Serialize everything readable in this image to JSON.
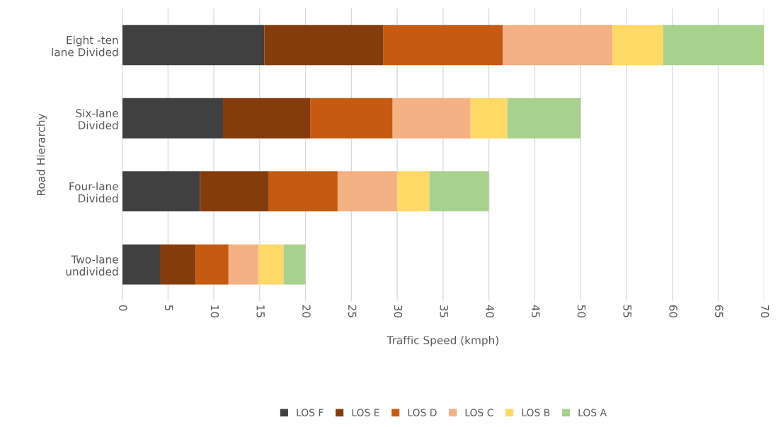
{
  "chart_data": {
    "type": "bar",
    "orientation": "horizontal",
    "stacked": true,
    "xlabel": "Traffic Speed (kmph)",
    "ylabel": "Road Hierarchy",
    "categories": [
      "Eight -ten\nlane Divided",
      "Six-lane\nDivided",
      "Four-lane\nDivided",
      "Two-lane\nundivided"
    ],
    "series": [
      {
        "name": "LOS F",
        "color": "#404040",
        "values": [
          15.5,
          11,
          8.5,
          4.2
        ]
      },
      {
        "name": "LOS E",
        "color": "#843c0c",
        "values": [
          13,
          9.5,
          7.5,
          3.8
        ]
      },
      {
        "name": "LOS D",
        "color": "#c55a11",
        "values": [
          13,
          9,
          7.5,
          3.6
        ]
      },
      {
        "name": "LOS C",
        "color": "#f4b183",
        "values": [
          12,
          8.5,
          6.5,
          3.3
        ]
      },
      {
        "name": "LOS B",
        "color": "#ffd966",
        "values": [
          5.5,
          4,
          3.5,
          2.7
        ]
      },
      {
        "name": "LOS A",
        "color": "#a9d18e",
        "values": [
          11,
          8,
          6.5,
          2.4
        ]
      }
    ],
    "xlim": [
      0,
      70
    ],
    "xticks": [
      0,
      5,
      10,
      15,
      20,
      25,
      30,
      35,
      40,
      45,
      50,
      55,
      60,
      65,
      70
    ],
    "grid": "x",
    "legend": "bottom"
  }
}
